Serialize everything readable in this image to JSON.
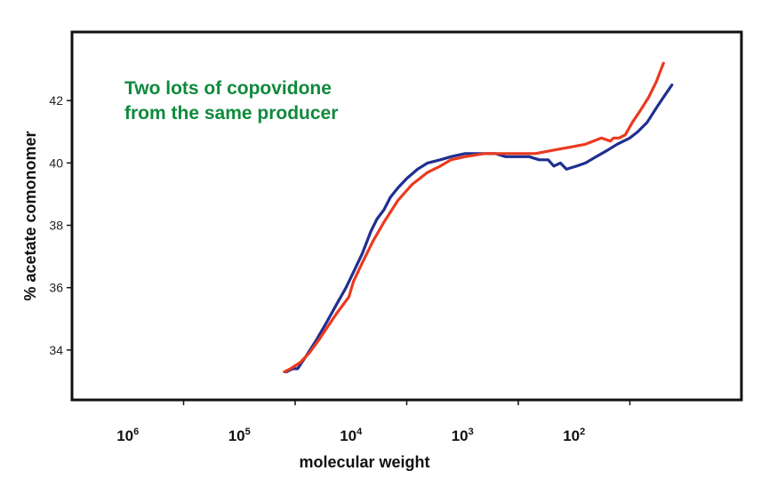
{
  "chart_data": {
    "type": "line",
    "annotation": [
      "Two lots of copovidone",
      "from the same producer"
    ],
    "xlabel": "molecular weight",
    "ylabel": "% acetate comonomer",
    "x_scale": "log",
    "x_reversed": true,
    "xlim": [
      10000000,
      10
    ],
    "ylim": [
      32.4,
      44.2
    ],
    "y_ticks": [
      34,
      36,
      38,
      40,
      42
    ],
    "x_ticks": [
      {
        "base": "10",
        "exp": "6",
        "value": 1000000
      },
      {
        "base": "10",
        "exp": "5",
        "value": 100000
      },
      {
        "base": "10",
        "exp": "4",
        "value": 10000
      },
      {
        "base": "10",
        "exp": "3",
        "value": 1000
      },
      {
        "base": "10",
        "exp": "2",
        "value": 100
      }
    ],
    "grid": false,
    "series": [
      {
        "color": "#1f2f8f",
        "points": [
          [
            120000,
            33.3
          ],
          [
            105000,
            33.4
          ],
          [
            95000,
            33.4
          ],
          [
            80000,
            33.8
          ],
          [
            65000,
            34.3
          ],
          [
            52000,
            34.9
          ],
          [
            42000,
            35.5
          ],
          [
            35000,
            36.0
          ],
          [
            30000,
            36.5
          ],
          [
            25000,
            37.1
          ],
          [
            21000,
            37.8
          ],
          [
            18500,
            38.2
          ],
          [
            16000,
            38.5
          ],
          [
            14000,
            38.9
          ],
          [
            12000,
            39.2
          ],
          [
            10000,
            39.5
          ],
          [
            8000,
            39.8
          ],
          [
            6500,
            40.0
          ],
          [
            5000,
            40.1
          ],
          [
            4000,
            40.2
          ],
          [
            3000,
            40.3
          ],
          [
            2500,
            40.3
          ],
          [
            2000,
            40.3
          ],
          [
            1600,
            40.3
          ],
          [
            1300,
            40.2
          ],
          [
            1000,
            40.2
          ],
          [
            800,
            40.2
          ],
          [
            650,
            40.1
          ],
          [
            540,
            40.1
          ],
          [
            480,
            39.9
          ],
          [
            420,
            40.0
          ],
          [
            370,
            39.8
          ],
          [
            300,
            39.9
          ],
          [
            250,
            40.0
          ],
          [
            200,
            40.2
          ],
          [
            160,
            40.4
          ],
          [
            130,
            40.6
          ],
          [
            100,
            40.8
          ],
          [
            85,
            41.0
          ],
          [
            70,
            41.3
          ],
          [
            57,
            41.8
          ],
          [
            48,
            42.2
          ],
          [
            42,
            42.5
          ]
        ]
      },
      {
        "color": "#ea3a1f",
        "points": [
          [
            125000,
            33.3
          ],
          [
            110000,
            33.4
          ],
          [
            90000,
            33.6
          ],
          [
            75000,
            33.9
          ],
          [
            62000,
            34.3
          ],
          [
            50000,
            34.8
          ],
          [
            42000,
            35.2
          ],
          [
            33000,
            35.7
          ],
          [
            30000,
            36.2
          ],
          [
            25000,
            36.8
          ],
          [
            20000,
            37.5
          ],
          [
            16000,
            38.1
          ],
          [
            12000,
            38.8
          ],
          [
            9000,
            39.3
          ],
          [
            6500,
            39.7
          ],
          [
            5000,
            39.9
          ],
          [
            4000,
            40.1
          ],
          [
            3000,
            40.2
          ],
          [
            2000,
            40.3
          ],
          [
            1500,
            40.3
          ],
          [
            1000,
            40.3
          ],
          [
            700,
            40.3
          ],
          [
            500,
            40.4
          ],
          [
            350,
            40.5
          ],
          [
            250,
            40.6
          ],
          [
            180,
            40.8
          ],
          [
            150,
            40.7
          ],
          [
            140,
            40.8
          ],
          [
            125,
            40.8
          ],
          [
            110,
            40.9
          ],
          [
            95,
            41.3
          ],
          [
            80,
            41.7
          ],
          [
            68,
            42.1
          ],
          [
            58,
            42.6
          ],
          [
            50,
            43.2
          ]
        ]
      }
    ]
  }
}
